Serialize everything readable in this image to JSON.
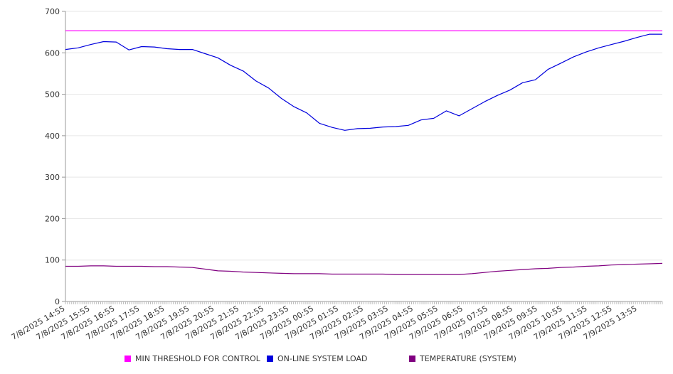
{
  "chart_data": {
    "type": "line",
    "title": "",
    "xlabel": "",
    "ylabel": "",
    "ylim": [
      0,
      700
    ],
    "yticks": [
      0,
      100,
      200,
      300,
      400,
      500,
      600,
      700
    ],
    "grid": true,
    "legend_position": "bottom",
    "x_tick_labels": [
      "7/8/2025 14:55",
      "7/8/2025 15:55",
      "7/8/2025 16:55",
      "7/8/2025 17:55",
      "7/8/2025 18:55",
      "7/8/2025 19:55",
      "7/8/2025 20:55",
      "7/8/2025 21:55",
      "7/8/2025 22:55",
      "7/8/2025 23:55",
      "7/9/2025 00:55",
      "7/9/2025 01:55",
      "7/9/2025 02:55",
      "7/9/2025 03:55",
      "7/9/2025 04:55",
      "7/9/2025 05:55",
      "7/9/2025 06:55",
      "7/9/2025 07:55",
      "7/9/2025 08:55",
      "7/9/2025 09:55",
      "7/9/2025 10:55",
      "7/9/2025 11:55",
      "7/9/2025 12:55",
      "7/9/2025 13:55"
    ],
    "x": [
      "7/8/2025 14:55",
      "7/8/2025 15:25",
      "7/8/2025 15:55",
      "7/8/2025 16:25",
      "7/8/2025 16:55",
      "7/8/2025 17:25",
      "7/8/2025 17:55",
      "7/8/2025 18:25",
      "7/8/2025 18:55",
      "7/8/2025 19:25",
      "7/8/2025 19:55",
      "7/8/2025 20:25",
      "7/8/2025 20:55",
      "7/8/2025 21:25",
      "7/8/2025 21:55",
      "7/8/2025 22:25",
      "7/8/2025 22:55",
      "7/8/2025 23:25",
      "7/8/2025 23:55",
      "7/9/2025 00:25",
      "7/9/2025 00:55",
      "7/9/2025 01:25",
      "7/9/2025 01:55",
      "7/9/2025 02:25",
      "7/9/2025 02:55",
      "7/9/2025 03:25",
      "7/9/2025 03:55",
      "7/9/2025 04:25",
      "7/9/2025 04:55",
      "7/9/2025 05:25",
      "7/9/2025 05:55",
      "7/9/2025 06:25",
      "7/9/2025 06:55",
      "7/9/2025 07:25",
      "7/9/2025 07:55",
      "7/9/2025 08:25",
      "7/9/2025 08:55",
      "7/9/2025 09:25",
      "7/9/2025 09:55",
      "7/9/2025 10:25",
      "7/9/2025 10:55",
      "7/9/2025 11:25",
      "7/9/2025 11:55",
      "7/9/2025 12:25",
      "7/9/2025 12:55",
      "7/9/2025 13:25",
      "7/9/2025 13:55",
      "7/9/2025 14:25"
    ],
    "series": [
      {
        "name": "MIN THRESHOLD FOR CONTROL",
        "color": "#ff00ff",
        "values": [
          653,
          653,
          653,
          653,
          653,
          653,
          653,
          653,
          653,
          653,
          653,
          653,
          653,
          653,
          653,
          653,
          653,
          653,
          653,
          653,
          653,
          653,
          653,
          653,
          653,
          653,
          653,
          653,
          653,
          653,
          653,
          653,
          653,
          653,
          653,
          653,
          653,
          653,
          653,
          653,
          653,
          653,
          653,
          653,
          653,
          653,
          653,
          653
        ]
      },
      {
        "name": "ON-LINE SYSTEM LOAD",
        "color": "#0000dd",
        "values": [
          608,
          612,
          620,
          627,
          626,
          607,
          615,
          614,
          610,
          608,
          608,
          598,
          588,
          570,
          556,
          532,
          515,
          490,
          470,
          455,
          430,
          420,
          413,
          417,
          418,
          421,
          422,
          425,
          438,
          442,
          460,
          448,
          465,
          482,
          497,
          510,
          528,
          535,
          560,
          575,
          590,
          602,
          612,
          620,
          628,
          637,
          645,
          645
        ]
      },
      {
        "name": "TEMPERATURE (SYSTEM)",
        "color": "#800080",
        "values": [
          85,
          85,
          86,
          86,
          85,
          85,
          85,
          84,
          84,
          83,
          82,
          78,
          74,
          73,
          71,
          70,
          69,
          68,
          67,
          67,
          67,
          66,
          66,
          66,
          66,
          66,
          65,
          65,
          65,
          65,
          65,
          65,
          67,
          70,
          73,
          75,
          77,
          79,
          80,
          82,
          83,
          85,
          86,
          88,
          89,
          90,
          91,
          92
        ]
      }
    ]
  }
}
